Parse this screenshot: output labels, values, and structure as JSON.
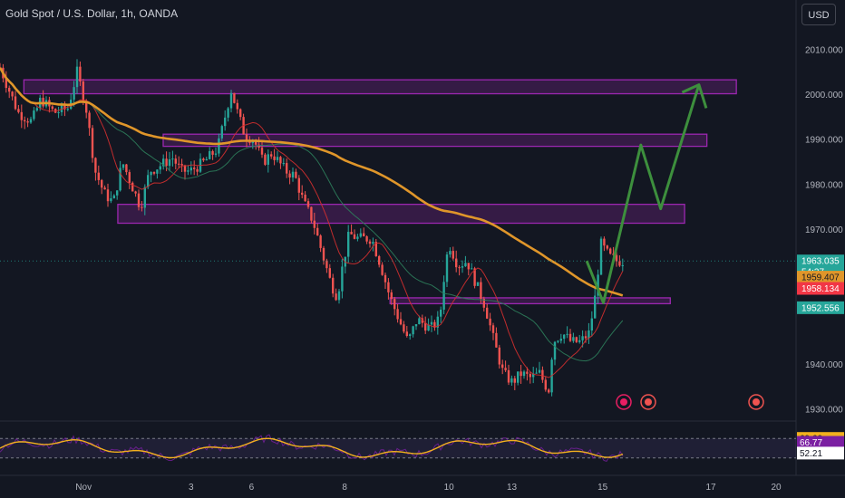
{
  "header": {
    "title": "Gold Spot / U.S. Dollar, 1h, OANDA",
    "currency": "USD"
  },
  "colors": {
    "background": "#131722",
    "candle_up": "#26a69a",
    "candle_down": "#ef5350",
    "zone": "#9c27b0",
    "ma_long": "#e0962a",
    "ma_fast": "#d32f2f",
    "ma_mid": "#2e7d5b",
    "projection": "#3d8f3d",
    "rsi": "#f2b01e"
  },
  "chart_data": {
    "type": "candlestick",
    "y_axis_labels": [
      "2010.000",
      "2000.000",
      "1990.000",
      "1980.000",
      "1970.000",
      "1940.000",
      "1930.000"
    ],
    "ylim": [
      1928,
      2014
    ],
    "x_axis_labels": [
      "Nov",
      "3",
      "6",
      "8",
      "10",
      "13",
      "15",
      "17",
      "20"
    ],
    "zones": [
      {
        "start": 0.03,
        "end": 0.925,
        "low": 2000.2,
        "high": 2003.3
      },
      {
        "start": 0.205,
        "end": 0.888,
        "low": 1988.5,
        "high": 1991.2
      },
      {
        "start": 0.148,
        "end": 0.86,
        "low": 1971.4,
        "high": 1975.6
      },
      {
        "start": 0.49,
        "end": 0.842,
        "low": 1953.5,
        "high": 1954.8
      }
    ],
    "projection": {
      "x": [
        0.737,
        0.758,
        0.805,
        0.83,
        0.878,
        0.857
      ],
      "y": [
        1963.0,
        1953.7,
        1988.8,
        1974.6,
        2002.2,
        2000.5
      ],
      "arrow_tip_y": 1997.0
    },
    "price_tags": [
      {
        "value": "1963.035",
        "sub": "54:37",
        "y": 1963.0,
        "color": "#26a69a",
        "text_color": "#ffffff"
      },
      {
        "value": "1959.407",
        "y": 1959.4,
        "color": "#e0962a",
        "text_color": "#131722"
      },
      {
        "value": "1958.134",
        "y": 1956.9,
        "color": "#f23645",
        "text_color": "#ffffff"
      },
      {
        "value": "1952.556",
        "y": 1952.6,
        "color": "#26a69a",
        "text_color": "#ffffff"
      }
    ],
    "rsi": {
      "ylim": [
        0,
        100
      ],
      "tags": [
        {
          "value": "69.60",
          "y": 70,
          "color": "#f2b01e",
          "text_color": "#131722"
        },
        {
          "value": "66.77",
          "y": 62,
          "color": "#7b1fa2",
          "text_color": "#ffffff"
        },
        {
          "value": "52.21",
          "y": 40,
          "color": "#ffffff",
          "text_color": "#131722"
        }
      ]
    }
  }
}
